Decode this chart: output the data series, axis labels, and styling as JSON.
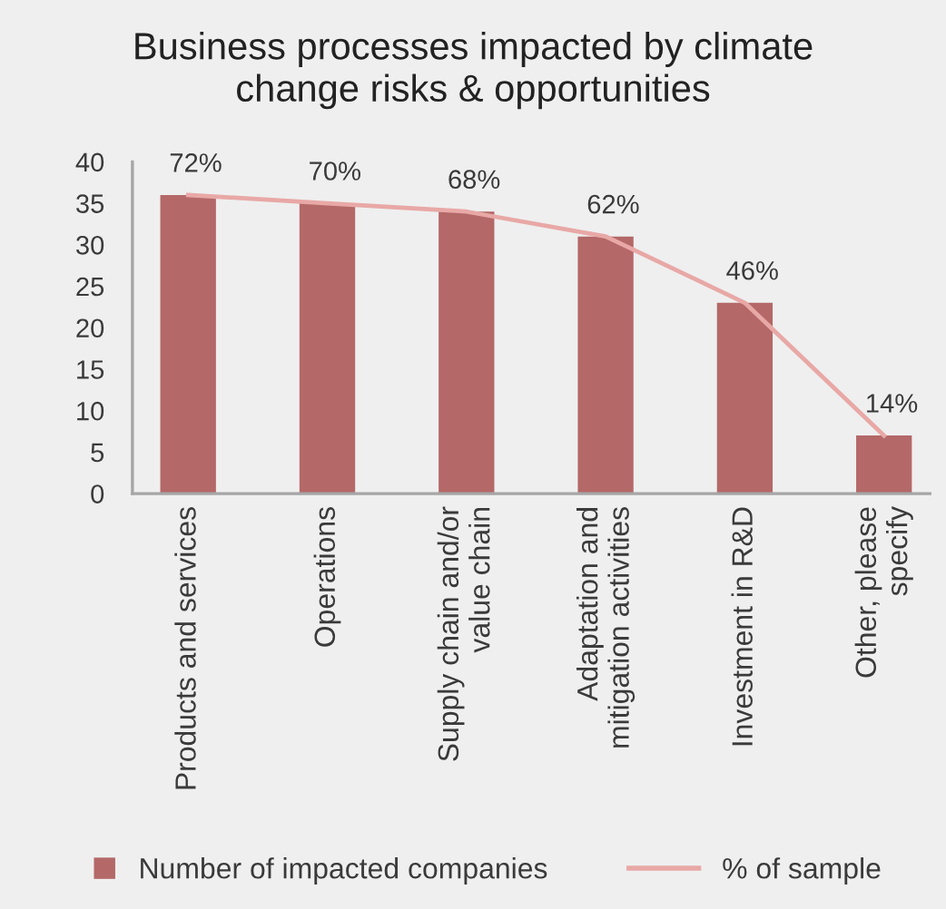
{
  "chart_data": {
    "type": "bar",
    "title": "Business processes impacted by climate\nchange risks & opportunities",
    "categories": [
      "Products and services",
      "Operations",
      "Supply chain and/or\nvalue chain",
      "Adaptation and\nmitigation activities",
      "Investment in R&D",
      "Other, please\nspecify"
    ],
    "series": [
      {
        "name": "Number of impacted companies",
        "color": "#b46868",
        "values": [
          36,
          35,
          34,
          31,
          23,
          7
        ]
      },
      {
        "name": "% of sample",
        "type": "line",
        "axis": "y2",
        "color": "#e8a8a6",
        "values": [
          72,
          70,
          68,
          62,
          46,
          14
        ],
        "value_labels": [
          "72%",
          "70%",
          "68%",
          "62%",
          "46%",
          "14%"
        ]
      }
    ],
    "ylim": [
      0,
      40
    ],
    "yticks": [
      0,
      5,
      10,
      15,
      20,
      25,
      30,
      35,
      40
    ],
    "y2lim": [
      0,
      80
    ],
    "grid": false,
    "legend": "bottom",
    "marker": "none",
    "line_style": "solid"
  }
}
